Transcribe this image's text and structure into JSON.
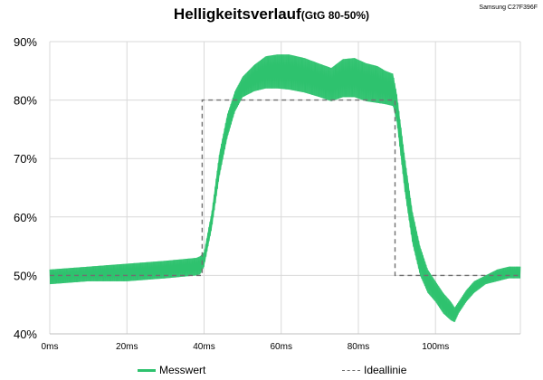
{
  "header": {
    "title": "Helligkeitsverlauf",
    "subtitle": "(GtG 80-50%)",
    "device": "Samsung C27F396F"
  },
  "legend": {
    "measured_label": "Messwert",
    "ideal_label": "Ideallinie"
  },
  "colors": {
    "measured": "#2ec26e",
    "ideal": "#707070",
    "grid": "#d9d9d9",
    "axis": "#bfbfbf"
  },
  "chart_data": {
    "type": "line",
    "title": "Helligkeitsverlauf",
    "subtitle": "(GtG 80-50%)",
    "xlabel": "",
    "ylabel": "",
    "x_unit": "ms",
    "y_unit": "%",
    "xlim": [
      0,
      122
    ],
    "ylim": [
      40,
      90
    ],
    "x_ticks": [
      0,
      20,
      40,
      60,
      80,
      100
    ],
    "x_tick_labels": [
      "0ms",
      "20ms",
      "40ms",
      "60ms",
      "80ms",
      "100ms"
    ],
    "y_ticks": [
      40,
      50,
      60,
      70,
      80,
      90
    ],
    "y_tick_labels": [
      "40%",
      "50%",
      "60%",
      "70%",
      "80%",
      "90%"
    ],
    "grid": true,
    "legend_position": "bottom",
    "series": [
      {
        "name": "Messwert",
        "style": "band",
        "x": [
          0,
          10,
          20,
          30,
          38,
          39,
          40,
          42,
          44,
          46,
          48,
          50,
          53,
          56,
          59,
          62,
          66,
          70,
          73,
          76,
          79,
          82,
          85,
          87,
          89,
          90,
          92,
          94,
          96,
          98,
          100,
          102,
          104,
          105,
          106,
          108,
          110,
          113,
          116,
          119,
          122
        ],
        "upper": [
          51.0,
          51.5,
          52.0,
          52.5,
          53.0,
          53.3,
          54.0,
          61.0,
          71.0,
          77.5,
          81.5,
          84.0,
          86.0,
          87.5,
          87.8,
          87.8,
          87.2,
          86.2,
          85.5,
          87.0,
          87.2,
          86.3,
          85.8,
          85.0,
          84.5,
          81.0,
          70.5,
          61.0,
          55.0,
          51.0,
          49.0,
          47.0,
          45.5,
          44.5,
          45.5,
          47.5,
          49.0,
          50.0,
          51.0,
          51.5,
          51.5
        ],
        "lower": [
          48.5,
          49.0,
          49.0,
          49.5,
          50.0,
          50.2,
          51.5,
          58.0,
          67.0,
          73.5,
          78.0,
          80.5,
          81.5,
          82.0,
          82.0,
          81.8,
          81.3,
          80.5,
          79.8,
          80.5,
          80.5,
          79.8,
          79.5,
          79.3,
          79.0,
          76.0,
          64.5,
          55.5,
          50.0,
          47.0,
          45.5,
          43.5,
          42.3,
          42.0,
          43.5,
          45.5,
          47.0,
          48.5,
          49.0,
          49.5,
          49.5
        ]
      },
      {
        "name": "Ideallinie",
        "style": "dashed",
        "x": [
          0,
          39.5,
          39.5,
          89.5,
          89.5,
          122
        ],
        "y": [
          50,
          50,
          80,
          80,
          50,
          50
        ]
      }
    ]
  }
}
